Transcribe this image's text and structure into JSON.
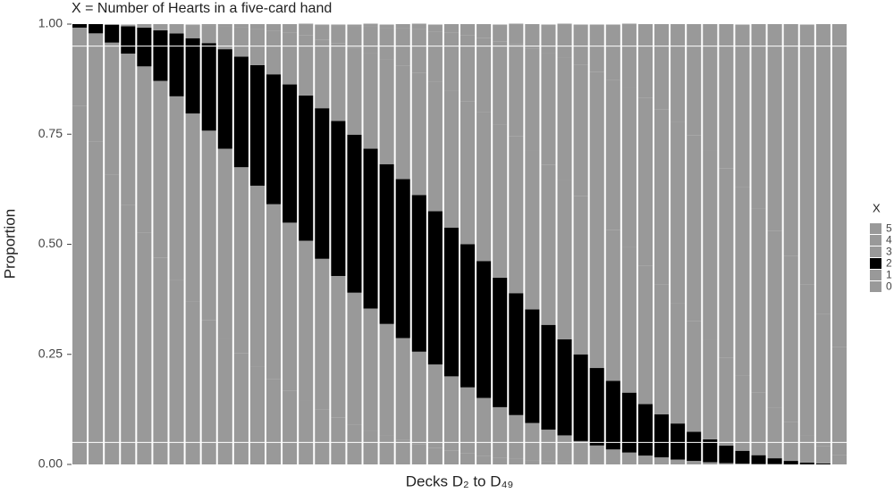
{
  "chart_data": {
    "type": "stacked_bar",
    "title": "X = Number of Hearts in a five-card hand",
    "x_label": "Decks D₂ to D₄₉",
    "y_label": "Proportion",
    "legend_title": "X",
    "categories": [
      null,
      null,
      null,
      null,
      null,
      null,
      null,
      null,
      null,
      null,
      null,
      null,
      null,
      null,
      null,
      null,
      null,
      null,
      null,
      null,
      null,
      null,
      null,
      null,
      null,
      null,
      null,
      null,
      null,
      null,
      null,
      null,
      null,
      null,
      null,
      null,
      null,
      null,
      null,
      null,
      null,
      null,
      null,
      null,
      null,
      null,
      null,
      null
    ],
    "ylim": [
      0,
      1
    ],
    "yticks": [
      {
        "value": 0,
        "label": "0.00"
      },
      {
        "value": 0.25,
        "label": "0.25"
      },
      {
        "value": 0.5,
        "label": "0.50"
      },
      {
        "value": 0.75,
        "label": "0.75"
      },
      {
        "value": 1,
        "label": "1.00"
      }
    ],
    "hlines": [
      0.05,
      0.95
    ],
    "series": [
      {
        "name": "0",
        "color": "#999999",
        "values": [
          0.815,
          0.734,
          0.659,
          0.59,
          0.527,
          0.47,
          0.418,
          0.37,
          0.327,
          0.288,
          0.253,
          0.222,
          0.193,
          0.168,
          0.145,
          0.125,
          0.107,
          0.091,
          0.077,
          0.065,
          0.055,
          0.046,
          0.038,
          0.031,
          0.025,
          0.02,
          0.016,
          0.013,
          0.01,
          0.008,
          0.006,
          0.004,
          0.003,
          0.002,
          0.002,
          0.001,
          0.001,
          0,
          0,
          0,
          0,
          0,
          0,
          0,
          0,
          0,
          0,
          0
        ]
      },
      {
        "name": "1",
        "color": "#999999",
        "values": [
          0.177,
          0.245,
          0.299,
          0.343,
          0.377,
          0.401,
          0.418,
          0.427,
          0.431,
          0.429,
          0.422,
          0.411,
          0.398,
          0.381,
          0.363,
          0.342,
          0.321,
          0.299,
          0.277,
          0.254,
          0.232,
          0.21,
          0.189,
          0.169,
          0.15,
          0.131,
          0.114,
          0.099,
          0.084,
          0.071,
          0.06,
          0.049,
          0.04,
          0.032,
          0.025,
          0.019,
          0.015,
          0.011,
          0.008,
          0.005,
          0.003,
          0.002,
          0.001,
          0.001,
          0,
          0,
          0,
          0
        ]
      },
      {
        "name": "2",
        "color": "#000000",
        "values": [
          0.008,
          0.021,
          0.04,
          0.062,
          0.088,
          0.115,
          0.143,
          0.171,
          0.199,
          0.226,
          0.251,
          0.274,
          0.295,
          0.314,
          0.33,
          0.342,
          0.352,
          0.359,
          0.363,
          0.363,
          0.361,
          0.356,
          0.348,
          0.338,
          0.325,
          0.311,
          0.294,
          0.277,
          0.258,
          0.238,
          0.218,
          0.197,
          0.176,
          0.156,
          0.136,
          0.117,
          0.098,
          0.082,
          0.066,
          0.052,
          0.04,
          0.029,
          0.02,
          0.013,
          0.008,
          0.004,
          0.002,
          0
        ]
      },
      {
        "name": "3",
        "color": "#999999",
        "values": [
          0,
          0,
          0.002,
          0.004,
          0.008,
          0.013,
          0.02,
          0.029,
          0.04,
          0.052,
          0.066,
          0.082,
          0.098,
          0.117,
          0.136,
          0.156,
          0.176,
          0.197,
          0.218,
          0.238,
          0.258,
          0.277,
          0.294,
          0.311,
          0.325,
          0.338,
          0.348,
          0.356,
          0.361,
          0.363,
          0.363,
          0.359,
          0.352,
          0.342,
          0.33,
          0.314,
          0.295,
          0.274,
          0.251,
          0.226,
          0.199,
          0.171,
          0.143,
          0.115,
          0.088,
          0.062,
          0.04,
          0.021
        ]
      },
      {
        "name": "4",
        "color": "#999999",
        "values": [
          0,
          0,
          0,
          0,
          0,
          0.001,
          0.001,
          0.002,
          0.003,
          0.005,
          0.008,
          0.011,
          0.015,
          0.019,
          0.025,
          0.032,
          0.04,
          0.049,
          0.06,
          0.071,
          0.084,
          0.099,
          0.114,
          0.131,
          0.15,
          0.169,
          0.189,
          0.21,
          0.232,
          0.254,
          0.277,
          0.299,
          0.321,
          0.342,
          0.363,
          0.381,
          0.398,
          0.411,
          0.422,
          0.429,
          0.431,
          0.427,
          0.418,
          0.401,
          0.377,
          0.343,
          0.299,
          0.245
        ]
      },
      {
        "name": "5",
        "color": "#999999",
        "values": [
          0,
          0,
          0,
          0,
          0,
          0,
          0,
          0,
          0,
          0,
          0,
          0,
          0.001,
          0.001,
          0.002,
          0.002,
          0.003,
          0.004,
          0.006,
          0.008,
          0.01,
          0.013,
          0.016,
          0.02,
          0.025,
          0.031,
          0.038,
          0.046,
          0.055,
          0.065,
          0.077,
          0.091,
          0.107,
          0.125,
          0.145,
          0.168,
          0.193,
          0.222,
          0.253,
          0.288,
          0.327,
          0.37,
          0.418,
          0.47,
          0.527,
          0.59,
          0.659,
          0.734
        ]
      }
    ]
  }
}
